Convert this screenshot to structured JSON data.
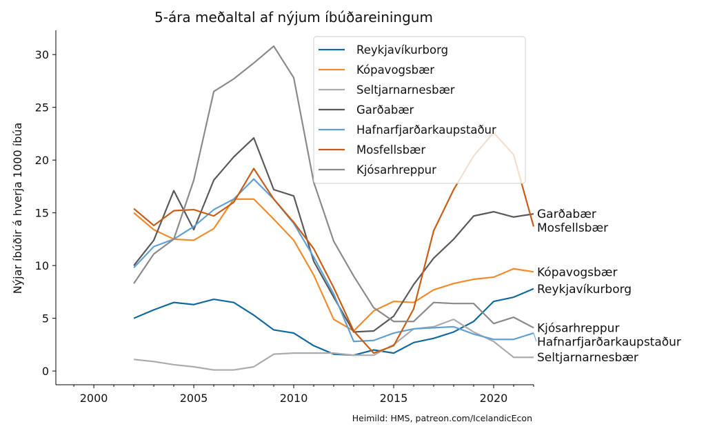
{
  "chart_data": {
    "type": "line",
    "title": "5-ára meðaltal af nýjum íbúðareiningum",
    "xlabel": "",
    "ylabel": "Nýjar íbúðir á hverja 1000 íbúa",
    "source": "Heimild: HMS, patreon.com/IcelandicEcon",
    "xlim": [
      1998.1,
      2022
    ],
    "ylim": [
      -1.3,
      32.3
    ],
    "xticks": [
      2000,
      2005,
      2010,
      2015,
      2020
    ],
    "yticks": [
      0,
      5,
      10,
      15,
      20,
      25,
      30
    ],
    "grid": false,
    "legend_position": "top-right",
    "x": [
      2002,
      2003,
      2004,
      2005,
      2006,
      2007,
      2008,
      2009,
      2010,
      2011,
      2012,
      2013,
      2014,
      2015,
      2016,
      2017,
      2018,
      2019,
      2020,
      2021,
      2022
    ],
    "series": [
      {
        "name": "Reykjavíkurborg",
        "color": "#1068a0",
        "values": [
          5.0,
          5.8,
          6.5,
          6.3,
          6.8,
          6.5,
          5.3,
          3.9,
          3.6,
          2.4,
          1.6,
          1.5,
          2.0,
          1.7,
          2.7,
          3.1,
          3.7,
          4.7,
          6.6,
          7.0,
          7.8
        ]
      },
      {
        "name": "Kópavogsbær",
        "color": "#f28a2a",
        "values": [
          15.0,
          13.4,
          12.5,
          12.4,
          13.5,
          16.3,
          16.3,
          14.4,
          12.4,
          9.1,
          4.9,
          3.8,
          5.7,
          6.6,
          6.5,
          7.7,
          8.3,
          8.7,
          8.9,
          9.7,
          9.4
        ]
      },
      {
        "name": "Seltjarnarnesbær",
        "color": "#ababab",
        "values": [
          1.1,
          0.9,
          0.6,
          0.4,
          0.1,
          0.1,
          0.4,
          1.6,
          1.7,
          1.7,
          1.7,
          1.5,
          1.5,
          2.5,
          4.0,
          4.2,
          4.9,
          3.7,
          2.8,
          1.3,
          1.3
        ]
      },
      {
        "name": "Garðabær",
        "color": "#595959",
        "values": [
          10.0,
          12.4,
          17.1,
          13.4,
          18.1,
          20.3,
          22.1,
          17.2,
          16.6,
          10.4,
          7.0,
          3.7,
          3.8,
          5.2,
          8.2,
          10.7,
          12.5,
          14.7,
          15.1,
          14.6,
          14.9
        ]
      },
      {
        "name": "Hafnarfjarðarkaupstaður",
        "color": "#5fa0d3",
        "values": [
          9.8,
          11.8,
          12.5,
          13.7,
          15.3,
          16.3,
          18.2,
          16.3,
          14.0,
          10.8,
          7.3,
          2.8,
          2.9,
          3.6,
          4.0,
          4.1,
          4.2,
          3.5,
          3.0,
          3.0,
          3.6
        ]
      },
      {
        "name": "Mosfellsbær",
        "color": "#c85c14",
        "values": [
          15.4,
          13.8,
          15.2,
          15.3,
          14.7,
          16.0,
          19.2,
          16.3,
          14.1,
          11.6,
          7.9,
          3.8,
          1.7,
          2.4,
          5.9,
          13.3,
          17.2,
          20.4,
          22.6,
          20.5,
          13.7
        ]
      },
      {
        "name": "Kjósarhreppur",
        "color": "#8a8a8a",
        "values": [
          8.3,
          11.1,
          12.5,
          18.1,
          26.5,
          27.7,
          29.2,
          30.8,
          27.8,
          17.9,
          12.3,
          9.0,
          6.0,
          4.7,
          4.7,
          6.5,
          6.4,
          6.4,
          4.5,
          5.1,
          4.1
        ]
      }
    ],
    "end_labels": [
      "Garðabær",
      "Mosfellsbær",
      "Kópavogsbær",
      "Reykjavíkurborg",
      "Kjósarhreppur",
      "Hafnarfjarðarkaupstaður",
      "Seltjarnarnesbær"
    ]
  }
}
